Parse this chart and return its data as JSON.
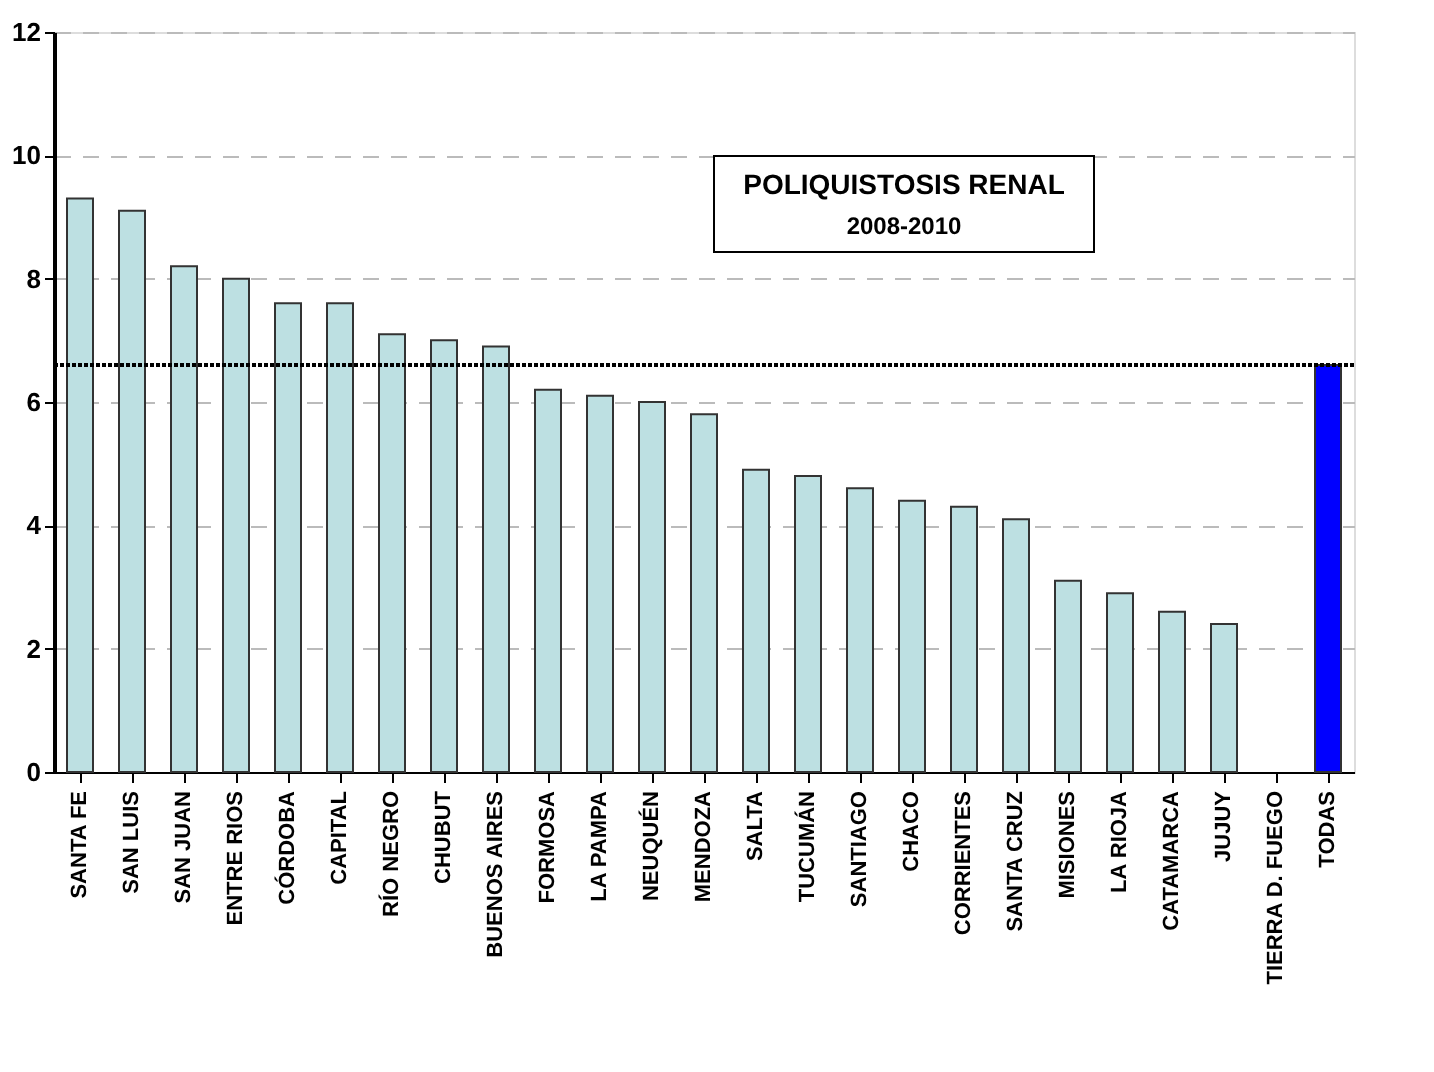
{
  "chart_data": {
    "type": "bar",
    "title": "POLIQUISTOSIS RENAL",
    "subtitle": "2008-2010",
    "categories": [
      "SANTA FE",
      "SAN LUIS",
      "SAN JUAN",
      "ENTRE RIOS",
      "CÓRDOBA",
      "CAPITAL",
      "RÍO NEGRO",
      "CHUBUT",
      "BUENOS AIRES",
      "FORMOSA",
      "LA PAMPA",
      "NEUQUÉN",
      "MENDOZA",
      "SALTA",
      "TUCUMÁN",
      "SANTIAGO",
      "CHACO",
      "CORRIENTES",
      "SANTA CRUZ",
      "MISIONES",
      "LA RIOJA",
      "CATAMARCA",
      "JUJUY",
      "TIERRA D. FUEGO",
      "TODAS"
    ],
    "values": [
      9.3,
      9.1,
      8.2,
      8.0,
      7.6,
      7.6,
      7.1,
      7.0,
      6.9,
      6.2,
      6.1,
      6.0,
      5.8,
      4.9,
      4.8,
      4.6,
      4.4,
      4.3,
      4.1,
      3.1,
      2.9,
      2.6,
      2.4,
      null,
      6.6
    ],
    "colors": [
      "#bde0e2",
      "#bde0e2",
      "#bde0e2",
      "#bde0e2",
      "#bde0e2",
      "#bde0e2",
      "#bde0e2",
      "#bde0e2",
      "#bde0e2",
      "#bde0e2",
      "#bde0e2",
      "#bde0e2",
      "#bde0e2",
      "#bde0e2",
      "#bde0e2",
      "#bde0e2",
      "#bde0e2",
      "#bde0e2",
      "#bde0e2",
      "#bde0e2",
      "#bde0e2",
      "#bde0e2",
      "#bde0e2",
      "#bde0e2",
      "#0000ff"
    ],
    "ylim": [
      0,
      12
    ],
    "yticks": [
      0,
      2,
      4,
      6,
      8,
      10,
      12
    ],
    "grid": "y",
    "ref_lines": [
      {
        "axis": "y",
        "value": 6.6,
        "color": "#000000",
        "line_style": "dotted"
      }
    ]
  }
}
